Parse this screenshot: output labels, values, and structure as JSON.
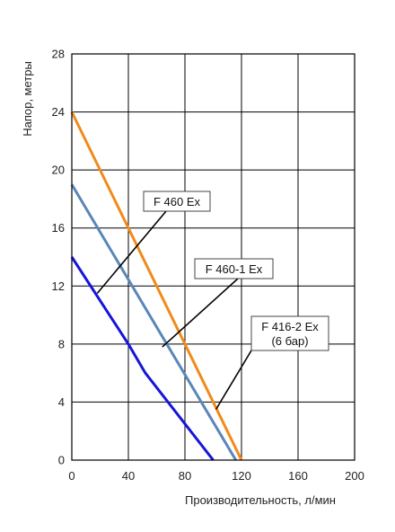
{
  "chart_data": {
    "type": "line",
    "xlabel": "Производительность, л/мин",
    "ylabel": "Напор, метры",
    "xlim": [
      0,
      200
    ],
    "ylim": [
      0,
      28
    ],
    "x_ticks": [
      "0",
      "40",
      "80",
      "120",
      "160",
      "200"
    ],
    "y_ticks": [
      "0",
      "4",
      "8",
      "12",
      "16",
      "20",
      "24",
      "28"
    ],
    "grid": true,
    "series": [
      {
        "color": "#f28a1a",
        "x": [
          0,
          120
        ],
        "y": [
          24,
          0
        ]
      },
      {
        "color": "#5a86b8",
        "x": [
          0,
          116
        ],
        "y": [
          19,
          0
        ]
      },
      {
        "color": "#1616d8",
        "x": [
          0,
          40,
          52,
          100
        ],
        "y": [
          14,
          8,
          6,
          0
        ]
      }
    ],
    "annotations": [
      {
        "lines": [
          "F 460 Ex"
        ],
        "point": [
          18,
          11.5
        ]
      },
      {
        "lines": [
          "F 460-1 Ex"
        ],
        "point": [
          64,
          7.8
        ]
      },
      {
        "lines": [
          "F 416-2 Ex",
          "(6 бар)"
        ],
        "point": [
          102,
          3.5
        ]
      }
    ]
  }
}
